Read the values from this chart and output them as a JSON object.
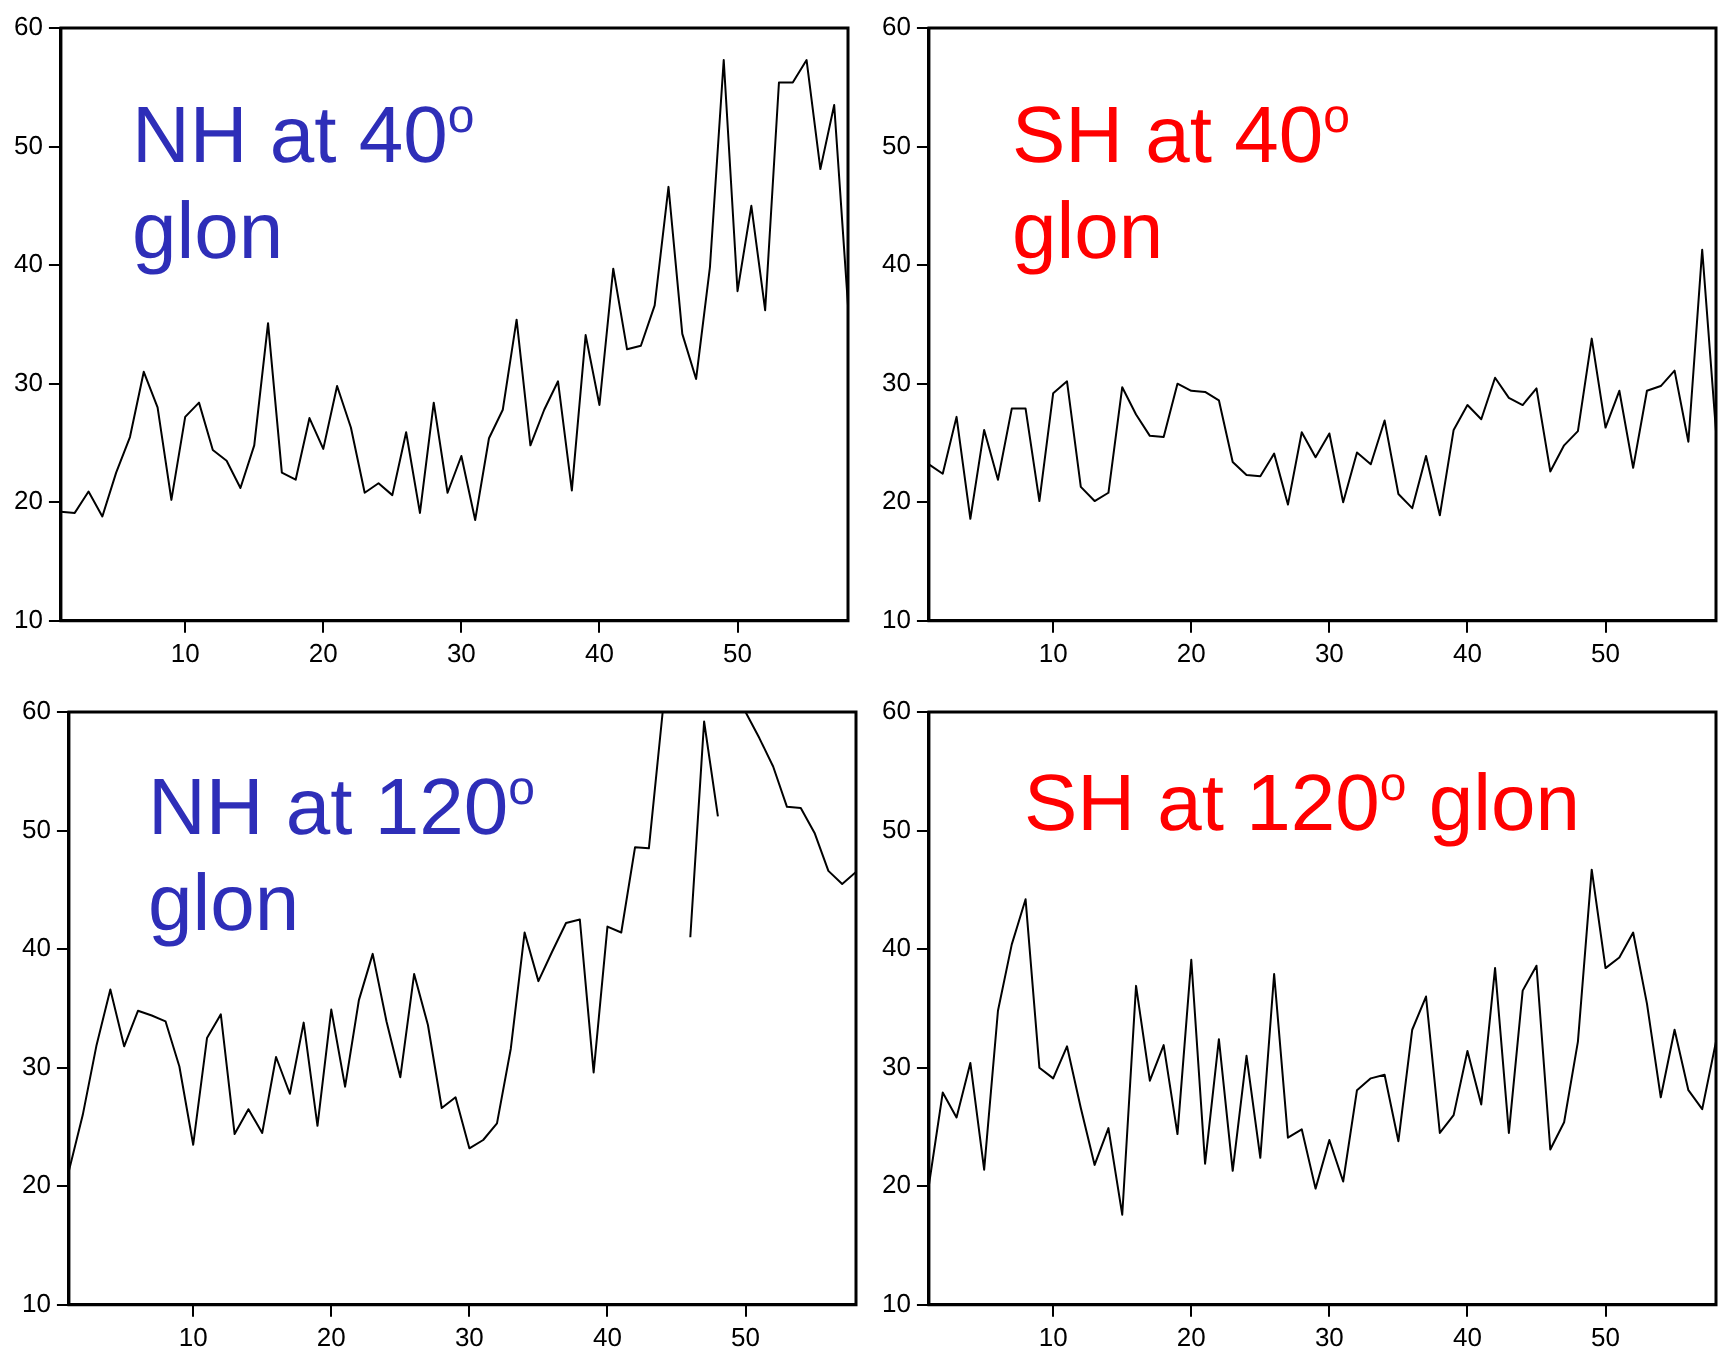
{
  "chart_data": [
    {
      "type": "line",
      "title": "NH at 40$^{o}$ glon",
      "x": [
        1,
        2,
        3,
        4,
        5,
        6,
        7,
        8,
        9,
        10,
        11,
        12,
        13,
        14,
        15,
        16,
        17,
        18,
        19,
        20,
        21,
        22,
        23,
        24,
        25,
        26,
        27,
        28,
        29,
        30,
        31,
        32,
        33,
        34,
        35,
        36,
        37,
        38,
        39,
        40,
        41,
        42,
        43,
        44,
        45,
        46,
        47,
        48,
        49,
        50,
        51,
        52,
        53,
        54,
        55,
        56,
        57,
        58
      ],
      "series": [
        {
          "color": "#000000",
          "values": [
            19.2,
            19.1,
            20.9,
            18.8,
            22.5,
            25.5,
            31,
            28,
            20.2,
            27.2,
            28.4,
            24.4,
            23.5,
            21.2,
            24.8,
            35.1,
            22.5,
            21.9,
            27.1,
            24.5,
            29.8,
            26.3,
            20.8,
            21.6,
            20.6,
            25.9,
            19.1,
            28.4,
            20.8,
            23.9,
            18.5,
            25.4,
            27.8,
            35.4,
            24.8,
            27.8,
            30.2,
            21,
            34.1,
            28.2,
            39.7,
            32.9,
            33.2,
            36.6,
            46.6,
            34.2,
            30.4,
            39.8,
            57.3,
            37.8,
            45,
            36.2,
            55.4,
            55.4,
            57.3,
            48.1,
            53.5,
            36.6
          ]
        }
      ],
      "xlim": [
        1,
        58
      ],
      "xticks": [
        10,
        20,
        30,
        40,
        50
      ],
      "ylim": [
        10,
        60
      ],
      "yticks": [
        10,
        20,
        30,
        40,
        50,
        60
      ],
      "grid": false,
      "legend": false,
      "marker": "none",
      "line_style": "solid"
    },
    {
      "type": "line",
      "title": "SH at 40$^{o}$ glon",
      "x": [
        1,
        2,
        3,
        4,
        5,
        6,
        7,
        8,
        9,
        10,
        11,
        12,
        13,
        14,
        15,
        16,
        17,
        18,
        19,
        20,
        21,
        22,
        23,
        24,
        25,
        26,
        27,
        28,
        29,
        30,
        31,
        32,
        33,
        34,
        35,
        36,
        37,
        38,
        39,
        40,
        41,
        42,
        43,
        44,
        45,
        46,
        47,
        48,
        49,
        50,
        51,
        52,
        53,
        54,
        55,
        56,
        57,
        58
      ],
      "series": [
        {
          "color": "#000000",
          "values": [
            23.2,
            22.4,
            27.2,
            18.6,
            26.1,
            21.9,
            27.9,
            27.9,
            20.1,
            29.2,
            30.2,
            21.3,
            20.1,
            20.8,
            29.7,
            27.4,
            25.6,
            25.5,
            30,
            29.4,
            29.3,
            28.6,
            23.4,
            22.3,
            22.2,
            24.1,
            19.8,
            25.9,
            23.8,
            25.8,
            20,
            24.2,
            23.2,
            26.9,
            20.7,
            19.5,
            23.9,
            18.9,
            26.1,
            28.2,
            27,
            30.5,
            28.8,
            28.2,
            29.6,
            22.6,
            24.8,
            26,
            33.8,
            26.3,
            29.4,
            22.9,
            29.4,
            29.8,
            31.1,
            25.1,
            41.3,
            26
          ]
        }
      ],
      "xlim": [
        1,
        58
      ],
      "xticks": [
        10,
        20,
        30,
        40,
        50
      ],
      "ylim": [
        10,
        60
      ],
      "yticks": [
        10,
        20,
        30,
        40,
        50,
        60
      ],
      "grid": false,
      "legend": false,
      "marker": "none",
      "line_style": "solid"
    },
    {
      "type": "line",
      "title": "NH at 120$^{o}$ glon",
      "x": [
        1,
        2,
        3,
        4,
        5,
        6,
        7,
        8,
        9,
        10,
        11,
        12,
        13,
        14,
        15,
        16,
        17,
        18,
        19,
        20,
        21,
        22,
        23,
        24,
        25,
        26,
        27,
        28,
        29,
        30,
        31,
        32,
        33,
        34,
        35,
        36,
        37,
        38,
        39,
        40,
        41,
        42,
        43,
        44,
        45,
        46,
        47,
        48,
        49,
        50,
        51,
        52,
        53,
        54,
        55,
        56,
        57,
        58
      ],
      "series": [
        {
          "color": "#000000",
          "values": [
            21.3,
            26,
            31.9,
            36.6,
            31.8,
            34.8,
            34.4,
            33.9,
            30.1,
            23.5,
            32.5,
            34.5,
            24.4,
            26.5,
            24.5,
            30.9,
            27.8,
            33.8,
            25.1,
            34.9,
            28.4,
            35.7,
            39.6,
            33.9,
            29.2,
            37.9,
            33.6,
            26.6,
            27.5,
            23.2,
            23.9,
            25.3,
            31.6,
            41.4,
            37.3,
            39.8,
            42.2,
            42.5,
            29.6,
            41.9,
            41.4,
            48.6,
            48.5,
            60,
            null,
            41,
            59.2,
            51.2,
            null,
            60,
            57.8,
            55.4,
            52,
            51.9,
            49.8,
            46.6,
            45.5,
            46.5
          ]
        }
      ],
      "xlim": [
        1,
        58
      ],
      "xticks": [
        10,
        20,
        30,
        40,
        50
      ],
      "ylim": [
        10,
        60
      ],
      "yticks": [
        10,
        20,
        30,
        40,
        50,
        60
      ],
      "grid": false,
      "legend": false,
      "marker": "none",
      "line_style": "solid"
    },
    {
      "type": "line",
      "title": "SH at 120$^{o}$ glon",
      "x": [
        1,
        2,
        3,
        4,
        5,
        6,
        7,
        8,
        9,
        10,
        11,
        12,
        13,
        14,
        15,
        16,
        17,
        18,
        19,
        20,
        21,
        22,
        23,
        24,
        25,
        26,
        27,
        28,
        29,
        30,
        31,
        32,
        33,
        34,
        35,
        36,
        37,
        38,
        39,
        40,
        41,
        42,
        43,
        44,
        45,
        46,
        47,
        48,
        49,
        50,
        51,
        52,
        53,
        54,
        55,
        56,
        57,
        58
      ],
      "series": [
        {
          "color": "#000000",
          "values": [
            20.1,
            27.9,
            25.8,
            30.4,
            21.4,
            34.8,
            40.4,
            44.2,
            30,
            29.1,
            31.8,
            26.6,
            21.8,
            24.9,
            17.6,
            36.9,
            28.9,
            31.9,
            24.4,
            39.1,
            21.9,
            32.4,
            21.3,
            31,
            22.4,
            37.9,
            24.1,
            24.8,
            19.8,
            23.9,
            20.4,
            28.1,
            29.1,
            29.4,
            23.8,
            33.2,
            36,
            24.5,
            26,
            31.4,
            26.9,
            38.4,
            24.5,
            36.5,
            38.6,
            23.1,
            25.4,
            32.2,
            46.7,
            38.4,
            39.3,
            41.4,
            35.4,
            27.5,
            33.2,
            28.1,
            26.5,
            32.2
          ]
        }
      ],
      "xlim": [
        1,
        58
      ],
      "xticks": [
        10,
        20,
        30,
        40,
        50
      ],
      "ylim": [
        10,
        60
      ],
      "yticks": [
        10,
        20,
        30,
        40,
        50,
        60
      ],
      "grid": false,
      "legend": false,
      "marker": "none",
      "line_style": "solid"
    }
  ]
}
